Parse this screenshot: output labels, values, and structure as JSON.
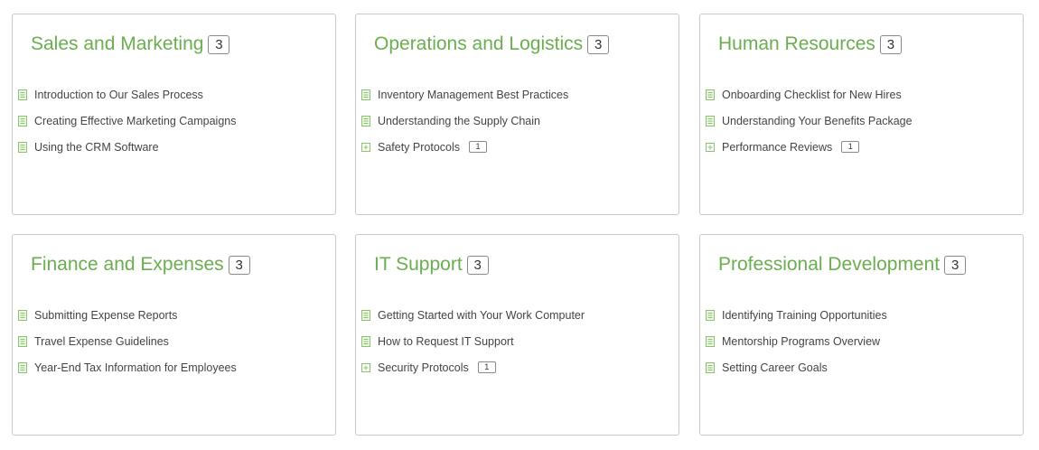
{
  "colors": {
    "title": "#6aae4f",
    "icon": "#8cc26f",
    "border": "#c9c9c9"
  },
  "categories": [
    {
      "title": "Sales and Marketing",
      "count": "3",
      "items": [
        {
          "label": "Introduction to Our Sales Process",
          "icon": "document-icon",
          "badge": ""
        },
        {
          "label": "Creating Effective Marketing Campaigns",
          "icon": "document-icon",
          "badge": ""
        },
        {
          "label": "Using the CRM Software",
          "icon": "document-icon",
          "badge": ""
        }
      ]
    },
    {
      "title": "Operations and Logistics",
      "count": "3",
      "items": [
        {
          "label": "Inventory Management Best Practices",
          "icon": "document-icon",
          "badge": ""
        },
        {
          "label": "Understanding the Supply Chain",
          "icon": "document-icon",
          "badge": ""
        },
        {
          "label": "Safety Protocols",
          "icon": "expand-icon",
          "badge": "1"
        }
      ]
    },
    {
      "title": "Human Resources",
      "count": "3",
      "items": [
        {
          "label": "Onboarding Checklist for New Hires",
          "icon": "document-icon",
          "badge": ""
        },
        {
          "label": "Understanding Your Benefits Package",
          "icon": "document-icon",
          "badge": ""
        },
        {
          "label": "Performance Reviews",
          "icon": "expand-icon",
          "badge": "1"
        }
      ]
    },
    {
      "title": "Finance and Expenses",
      "count": "3",
      "items": [
        {
          "label": "Submitting Expense Reports",
          "icon": "document-icon",
          "badge": ""
        },
        {
          "label": "Travel Expense Guidelines",
          "icon": "document-icon",
          "badge": ""
        },
        {
          "label": "Year-End Tax Information for Employees",
          "icon": "document-icon",
          "badge": ""
        }
      ]
    },
    {
      "title": "IT Support",
      "count": "3",
      "items": [
        {
          "label": "Getting Started with Your Work Computer",
          "icon": "document-icon",
          "badge": ""
        },
        {
          "label": "How to Request IT Support",
          "icon": "document-icon",
          "badge": ""
        },
        {
          "label": "Security Protocols",
          "icon": "expand-icon",
          "badge": "1"
        }
      ]
    },
    {
      "title": "Professional Development",
      "count": "3",
      "items": [
        {
          "label": "Identifying Training Opportunities",
          "icon": "document-icon",
          "badge": ""
        },
        {
          "label": "Mentorship Programs Overview",
          "icon": "document-icon",
          "badge": ""
        },
        {
          "label": "Setting Career Goals",
          "icon": "document-icon",
          "badge": ""
        }
      ]
    }
  ]
}
